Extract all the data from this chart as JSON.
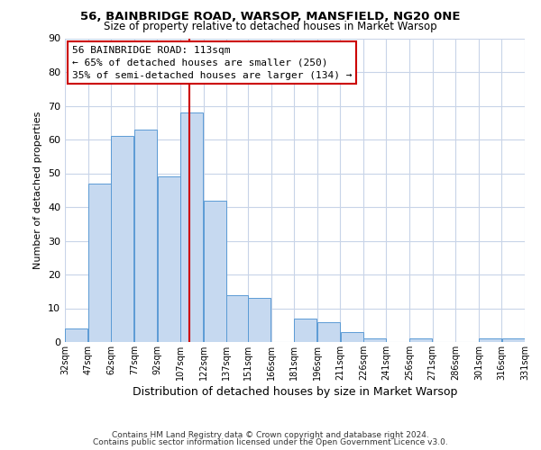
{
  "title1": "56, BAINBRIDGE ROAD, WARSOP, MANSFIELD, NG20 0NE",
  "title2": "Size of property relative to detached houses in Market Warsop",
  "xlabel": "Distribution of detached houses by size in Market Warsop",
  "ylabel": "Number of detached properties",
  "bar_left_edges": [
    32,
    47,
    62,
    77,
    92,
    107,
    122,
    137,
    151,
    166,
    181,
    196,
    211,
    226,
    241,
    256,
    271,
    286,
    301,
    316
  ],
  "bar_widths": [
    15,
    15,
    15,
    15,
    15,
    15,
    15,
    14,
    15,
    15,
    15,
    15,
    15,
    15,
    15,
    15,
    15,
    15,
    15,
    15
  ],
  "bar_heights": [
    4,
    47,
    61,
    63,
    49,
    68,
    42,
    14,
    13,
    0,
    7,
    6,
    3,
    1,
    0,
    1,
    0,
    0,
    1,
    1
  ],
  "bar_color": "#c6d9f0",
  "bar_edgecolor": "#5b9bd5",
  "vline_x": 113,
  "vline_color": "#cc0000",
  "ylim": [
    0,
    90
  ],
  "yticks": [
    0,
    10,
    20,
    30,
    40,
    50,
    60,
    70,
    80,
    90
  ],
  "xtick_labels": [
    "32sqm",
    "47sqm",
    "62sqm",
    "77sqm",
    "92sqm",
    "107sqm",
    "122sqm",
    "137sqm",
    "151sqm",
    "166sqm",
    "181sqm",
    "196sqm",
    "211sqm",
    "226sqm",
    "241sqm",
    "256sqm",
    "271sqm",
    "286sqm",
    "301sqm",
    "316sqm",
    "331sqm"
  ],
  "annotation_title": "56 BAINBRIDGE ROAD: 113sqm",
  "annotation_line1": "← 65% of detached houses are smaller (250)",
  "annotation_line2": "35% of semi-detached houses are larger (134) →",
  "annotation_box_color": "#ffffff",
  "annotation_box_edgecolor": "#cc0000",
  "footnote1": "Contains HM Land Registry data © Crown copyright and database right 2024.",
  "footnote2": "Contains public sector information licensed under the Open Government Licence v3.0.",
  "background_color": "#ffffff",
  "grid_color": "#c8d4e8"
}
